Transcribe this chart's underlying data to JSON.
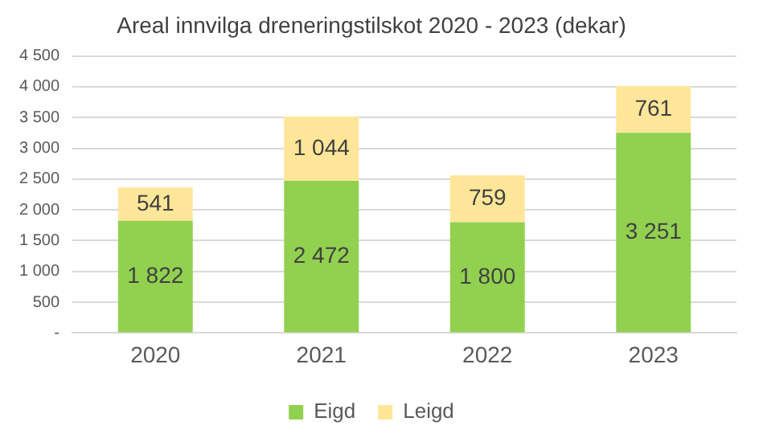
{
  "chart_data": {
    "type": "bar",
    "title": "Areal innvilga dreneringstilskot 2020 - 2023 (dekar)",
    "categories": [
      "2020",
      "2021",
      "2022",
      "2023"
    ],
    "stacked": true,
    "series": [
      {
        "name": "Eigd",
        "color": "#92d050",
        "values": [
          1822,
          2472,
          1800,
          3251
        ],
        "value_labels": [
          "1 822",
          "2 472",
          "1 800",
          "3 251"
        ]
      },
      {
        "name": "Leigd",
        "color": "#ffe699",
        "values": [
          541,
          1044,
          759,
          761
        ],
        "value_labels": [
          "541",
          "1 044",
          "759",
          "761"
        ]
      }
    ],
    "ylim": [
      0,
      4500
    ],
    "yticks": [
      {
        "value": 0,
        "label": "-"
      },
      {
        "value": 500,
        "label": "500"
      },
      {
        "value": 1000,
        "label": "1 000"
      },
      {
        "value": 1500,
        "label": "1 500"
      },
      {
        "value": 2000,
        "label": "2 000"
      },
      {
        "value": 2500,
        "label": "2 500"
      },
      {
        "value": 3000,
        "label": "3 000"
      },
      {
        "value": 3500,
        "label": "3 500"
      },
      {
        "value": 4000,
        "label": "4 000"
      },
      {
        "value": 4500,
        "label": "4 500"
      }
    ],
    "grid": "y",
    "legend": "bottom"
  }
}
